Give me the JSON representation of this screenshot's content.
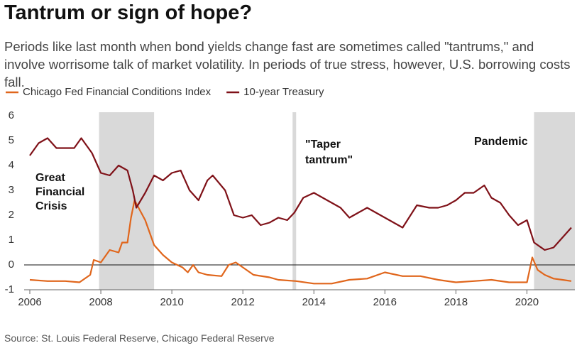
{
  "chart_data": {
    "type": "line",
    "title": "Tantrum or sign of hope?",
    "subtitle": "Periods like last month when bond yields change fast are sometimes called \"tantrums,\" and involve worrisome talk of market volatility. In periods of true stress, however, U.S. borrowing costs fall.",
    "source": "Source: St. Louis Federal Reserve, Chicago Federal Reserve",
    "xlim": [
      2006,
      2021.35
    ],
    "xticks": [
      2006,
      2008,
      2010,
      2012,
      2014,
      2016,
      2018,
      2020
    ],
    "ylim": [
      -1,
      6
    ],
    "yticks": [
      -1,
      0,
      1,
      2,
      3,
      4,
      5,
      6
    ],
    "shaded_regions": [
      [
        2007.95,
        2009.5
      ],
      [
        2013.4,
        2013.5
      ],
      [
        2020.2,
        2021.35
      ]
    ],
    "annotations": [
      [
        "Great",
        "Financial",
        "Crisis"
      ],
      [
        "\"Taper",
        "tantrum\""
      ],
      [
        "Pandemic"
      ]
    ],
    "series": [
      {
        "name": "Chicago Fed Financial Conditions Index",
        "color": "#e0661c",
        "x": [
          2006.0,
          2006.5,
          2007.0,
          2007.4,
          2007.7,
          2007.8,
          2008.0,
          2008.25,
          2008.5,
          2008.6,
          2008.75,
          2008.85,
          2008.95,
          2009.1,
          2009.25,
          2009.5,
          2009.75,
          2010.0,
          2010.3,
          2010.45,
          2010.6,
          2010.75,
          2011.0,
          2011.4,
          2011.6,
          2011.8,
          2012.0,
          2012.3,
          2012.75,
          2013.0,
          2013.5,
          2014.0,
          2014.5,
          2015.0,
          2015.5,
          2016.0,
          2016.5,
          2017.0,
          2017.5,
          2018.0,
          2018.5,
          2019.0,
          2019.5,
          2020.0,
          2020.15,
          2020.3,
          2020.5,
          2020.75,
          2021.0,
          2021.25
        ],
        "values": [
          -0.6,
          -0.65,
          -0.65,
          -0.7,
          -0.4,
          0.2,
          0.1,
          0.6,
          0.5,
          0.9,
          0.9,
          1.9,
          2.6,
          2.2,
          1.8,
          0.8,
          0.4,
          0.1,
          -0.1,
          -0.3,
          0.0,
          -0.3,
          -0.4,
          -0.45,
          0.0,
          0.1,
          -0.1,
          -0.4,
          -0.5,
          -0.6,
          -0.65,
          -0.75,
          -0.75,
          -0.6,
          -0.55,
          -0.3,
          -0.45,
          -0.45,
          -0.6,
          -0.7,
          -0.65,
          -0.6,
          -0.7,
          -0.7,
          0.3,
          -0.2,
          -0.4,
          -0.55,
          -0.6,
          -0.65
        ]
      },
      {
        "name": "10-year Treasury",
        "color": "#7f1118",
        "x": [
          2006.0,
          2006.25,
          2006.5,
          2006.75,
          2007.0,
          2007.25,
          2007.45,
          2007.75,
          2008.0,
          2008.25,
          2008.5,
          2008.75,
          2008.9,
          2009.0,
          2009.25,
          2009.5,
          2009.75,
          2010.0,
          2010.25,
          2010.5,
          2010.75,
          2011.0,
          2011.15,
          2011.5,
          2011.75,
          2012.0,
          2012.25,
          2012.5,
          2012.75,
          2013.0,
          2013.25,
          2013.45,
          2013.7,
          2014.0,
          2014.25,
          2014.5,
          2014.75,
          2015.0,
          2015.25,
          2015.5,
          2015.75,
          2016.0,
          2016.5,
          2016.9,
          2017.25,
          2017.5,
          2017.75,
          2018.0,
          2018.25,
          2018.5,
          2018.8,
          2019.0,
          2019.25,
          2019.5,
          2019.75,
          2020.0,
          2020.2,
          2020.5,
          2020.75,
          2021.0,
          2021.25
        ],
        "values": [
          4.4,
          4.9,
          5.1,
          4.7,
          4.7,
          4.7,
          5.1,
          4.5,
          3.7,
          3.6,
          4.0,
          3.8,
          3.0,
          2.3,
          2.9,
          3.6,
          3.4,
          3.7,
          3.8,
          3.0,
          2.6,
          3.4,
          3.6,
          3.0,
          2.0,
          1.9,
          2.0,
          1.6,
          1.7,
          1.9,
          1.8,
          2.1,
          2.7,
          2.9,
          2.7,
          2.5,
          2.3,
          1.9,
          2.1,
          2.3,
          2.1,
          1.9,
          1.5,
          2.4,
          2.3,
          2.3,
          2.4,
          2.6,
          2.9,
          2.9,
          3.2,
          2.7,
          2.5,
          2.0,
          1.6,
          1.8,
          0.9,
          0.6,
          0.7,
          1.1,
          1.5
        ]
      }
    ]
  }
}
